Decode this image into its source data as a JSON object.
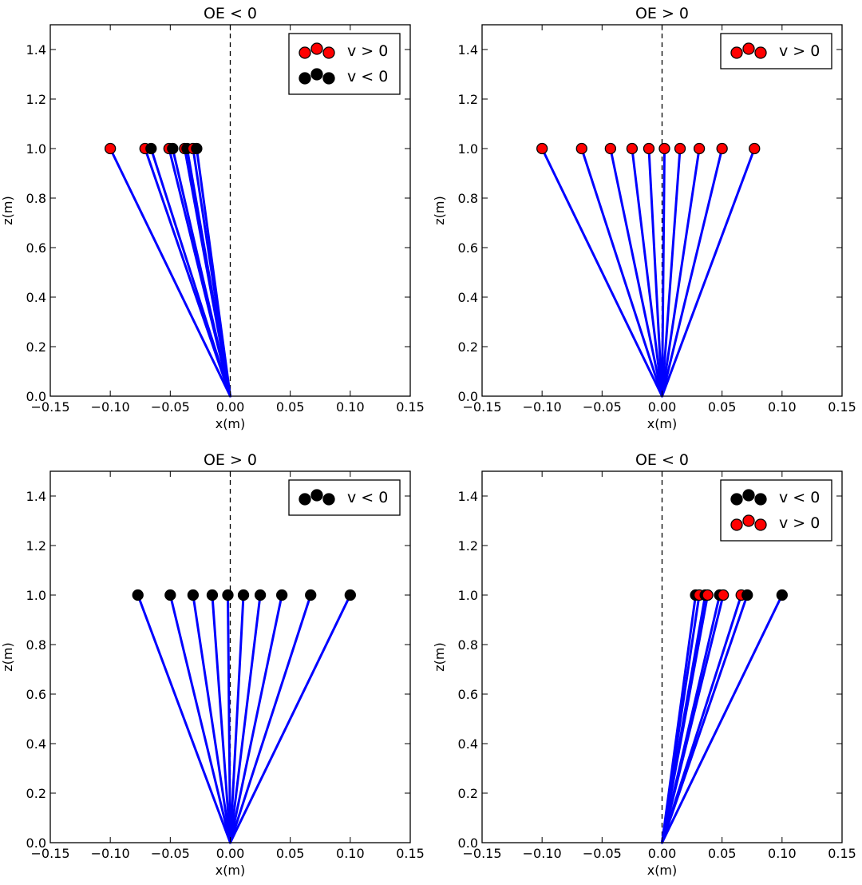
{
  "chart_data": [
    {
      "type": "scatter",
      "title": "OE < 0",
      "xlabel": "x(m)",
      "ylabel": "z(m)",
      "xlim": [
        -0.15,
        0.15
      ],
      "ylim": [
        0.0,
        1.5
      ],
      "xticks": [
        -0.15,
        -0.1,
        -0.05,
        0.0,
        0.05,
        0.1,
        0.15
      ],
      "xtick_labels": [
        "−0.15",
        "−0.10",
        "−0.05",
        "0.00",
        "0.05",
        "0.10",
        "0.15"
      ],
      "yticks": [
        0.0,
        0.2,
        0.4,
        0.6,
        0.8,
        1.0,
        1.2,
        1.4
      ],
      "ytick_labels": [
        "0.0",
        "0.2",
        "0.4",
        "0.6",
        "0.8",
        "1.0",
        "1.2",
        "1.4"
      ],
      "pivot": {
        "x": 0.0,
        "z": 0.0
      },
      "reference_line_x": 0.0,
      "legend": [
        {
          "label": "v > 0",
          "color": "#ff0000"
        },
        {
          "label": "v < 0",
          "color": "#000000"
        }
      ],
      "points": [
        {
          "x": -0.1,
          "z": 1.0,
          "color": "#ff0000"
        },
        {
          "x": -0.071,
          "z": 1.0,
          "color": "#ff0000"
        },
        {
          "x": -0.066,
          "z": 1.0,
          "color": "#000000"
        },
        {
          "x": -0.051,
          "z": 1.0,
          "color": "#ff0000"
        },
        {
          "x": -0.048,
          "z": 1.0,
          "color": "#000000"
        },
        {
          "x": -0.038,
          "z": 1.0,
          "color": "#ff0000"
        },
        {
          "x": -0.036,
          "z": 1.0,
          "color": "#000000"
        },
        {
          "x": -0.031,
          "z": 1.0,
          "color": "#ff0000"
        },
        {
          "x": -0.028,
          "z": 1.0,
          "color": "#000000"
        }
      ]
    },
    {
      "type": "scatter",
      "title": "OE > 0",
      "xlabel": "x(m)",
      "ylabel": "z(m)",
      "xlim": [
        -0.15,
        0.15
      ],
      "ylim": [
        0.0,
        1.5
      ],
      "xticks": [
        -0.15,
        -0.1,
        -0.05,
        0.0,
        0.05,
        0.1,
        0.15
      ],
      "xtick_labels": [
        "−0.15",
        "−0.10",
        "−0.05",
        "0.00",
        "0.05",
        "0.10",
        "0.15"
      ],
      "yticks": [
        0.0,
        0.2,
        0.4,
        0.6,
        0.8,
        1.0,
        1.2,
        1.4
      ],
      "ytick_labels": [
        "0.0",
        "0.2",
        "0.4",
        "0.6",
        "0.8",
        "1.0",
        "1.2",
        "1.4"
      ],
      "pivot": {
        "x": 0.0,
        "z": 0.0
      },
      "reference_line_x": 0.0,
      "legend": [
        {
          "label": "v > 0",
          "color": "#ff0000"
        }
      ],
      "points": [
        {
          "x": -0.1,
          "z": 1.0,
          "color": "#ff0000"
        },
        {
          "x": -0.067,
          "z": 1.0,
          "color": "#ff0000"
        },
        {
          "x": -0.043,
          "z": 1.0,
          "color": "#ff0000"
        },
        {
          "x": -0.025,
          "z": 1.0,
          "color": "#ff0000"
        },
        {
          "x": -0.011,
          "z": 1.0,
          "color": "#ff0000"
        },
        {
          "x": 0.002,
          "z": 1.0,
          "color": "#ff0000"
        },
        {
          "x": 0.015,
          "z": 1.0,
          "color": "#ff0000"
        },
        {
          "x": 0.031,
          "z": 1.0,
          "color": "#ff0000"
        },
        {
          "x": 0.05,
          "z": 1.0,
          "color": "#ff0000"
        },
        {
          "x": 0.077,
          "z": 1.0,
          "color": "#ff0000"
        }
      ]
    },
    {
      "type": "scatter",
      "title": "OE > 0",
      "xlabel": "x(m)",
      "ylabel": "z(m)",
      "xlim": [
        -0.15,
        0.15
      ],
      "ylim": [
        0.0,
        1.5
      ],
      "xticks": [
        -0.15,
        -0.1,
        -0.05,
        0.0,
        0.05,
        0.1,
        0.15
      ],
      "xtick_labels": [
        "−0.15",
        "−0.10",
        "−0.05",
        "0.00",
        "0.05",
        "0.10",
        "0.15"
      ],
      "yticks": [
        0.0,
        0.2,
        0.4,
        0.6,
        0.8,
        1.0,
        1.2,
        1.4
      ],
      "ytick_labels": [
        "0.0",
        "0.2",
        "0.4",
        "0.6",
        "0.8",
        "1.0",
        "1.2",
        "1.4"
      ],
      "pivot": {
        "x": 0.0,
        "z": 0.0
      },
      "reference_line_x": 0.0,
      "legend": [
        {
          "label": "v < 0",
          "color": "#000000"
        }
      ],
      "points": [
        {
          "x": -0.077,
          "z": 1.0,
          "color": "#000000"
        },
        {
          "x": -0.05,
          "z": 1.0,
          "color": "#000000"
        },
        {
          "x": -0.031,
          "z": 1.0,
          "color": "#000000"
        },
        {
          "x": -0.015,
          "z": 1.0,
          "color": "#000000"
        },
        {
          "x": -0.002,
          "z": 1.0,
          "color": "#000000"
        },
        {
          "x": 0.011,
          "z": 1.0,
          "color": "#000000"
        },
        {
          "x": 0.025,
          "z": 1.0,
          "color": "#000000"
        },
        {
          "x": 0.043,
          "z": 1.0,
          "color": "#000000"
        },
        {
          "x": 0.067,
          "z": 1.0,
          "color": "#000000"
        },
        {
          "x": 0.1,
          "z": 1.0,
          "color": "#000000"
        }
      ]
    },
    {
      "type": "scatter",
      "title": "OE < 0",
      "xlabel": "x(m)",
      "ylabel": "z(m)",
      "xlim": [
        -0.15,
        0.15
      ],
      "ylim": [
        0.0,
        1.5
      ],
      "xticks": [
        -0.15,
        -0.1,
        -0.05,
        0.0,
        0.05,
        0.1,
        0.15
      ],
      "xtick_labels": [
        "−0.15",
        "−0.10",
        "−0.05",
        "0.00",
        "0.05",
        "0.10",
        "0.15"
      ],
      "yticks": [
        0.0,
        0.2,
        0.4,
        0.6,
        0.8,
        1.0,
        1.2,
        1.4
      ],
      "ytick_labels": [
        "0.0",
        "0.2",
        "0.4",
        "0.6",
        "0.8",
        "1.0",
        "1.2",
        "1.4"
      ],
      "pivot": {
        "x": 0.0,
        "z": 0.0
      },
      "reference_line_x": 0.0,
      "legend": [
        {
          "label": "v < 0",
          "color": "#000000"
        },
        {
          "label": "v > 0",
          "color": "#ff0000"
        }
      ],
      "points": [
        {
          "x": 0.028,
          "z": 1.0,
          "color": "#000000"
        },
        {
          "x": 0.031,
          "z": 1.0,
          "color": "#ff0000"
        },
        {
          "x": 0.036,
          "z": 1.0,
          "color": "#000000"
        },
        {
          "x": 0.038,
          "z": 1.0,
          "color": "#ff0000"
        },
        {
          "x": 0.048,
          "z": 1.0,
          "color": "#000000"
        },
        {
          "x": 0.051,
          "z": 1.0,
          "color": "#ff0000"
        },
        {
          "x": 0.066,
          "z": 1.0,
          "color": "#ff0000"
        },
        {
          "x": 0.071,
          "z": 1.0,
          "color": "#000000"
        },
        {
          "x": 0.1,
          "z": 1.0,
          "color": "#000000"
        }
      ]
    }
  ],
  "colors": {
    "rod": "#0000ff",
    "reference_line": "#000000",
    "marker_edge": "#000000"
  }
}
